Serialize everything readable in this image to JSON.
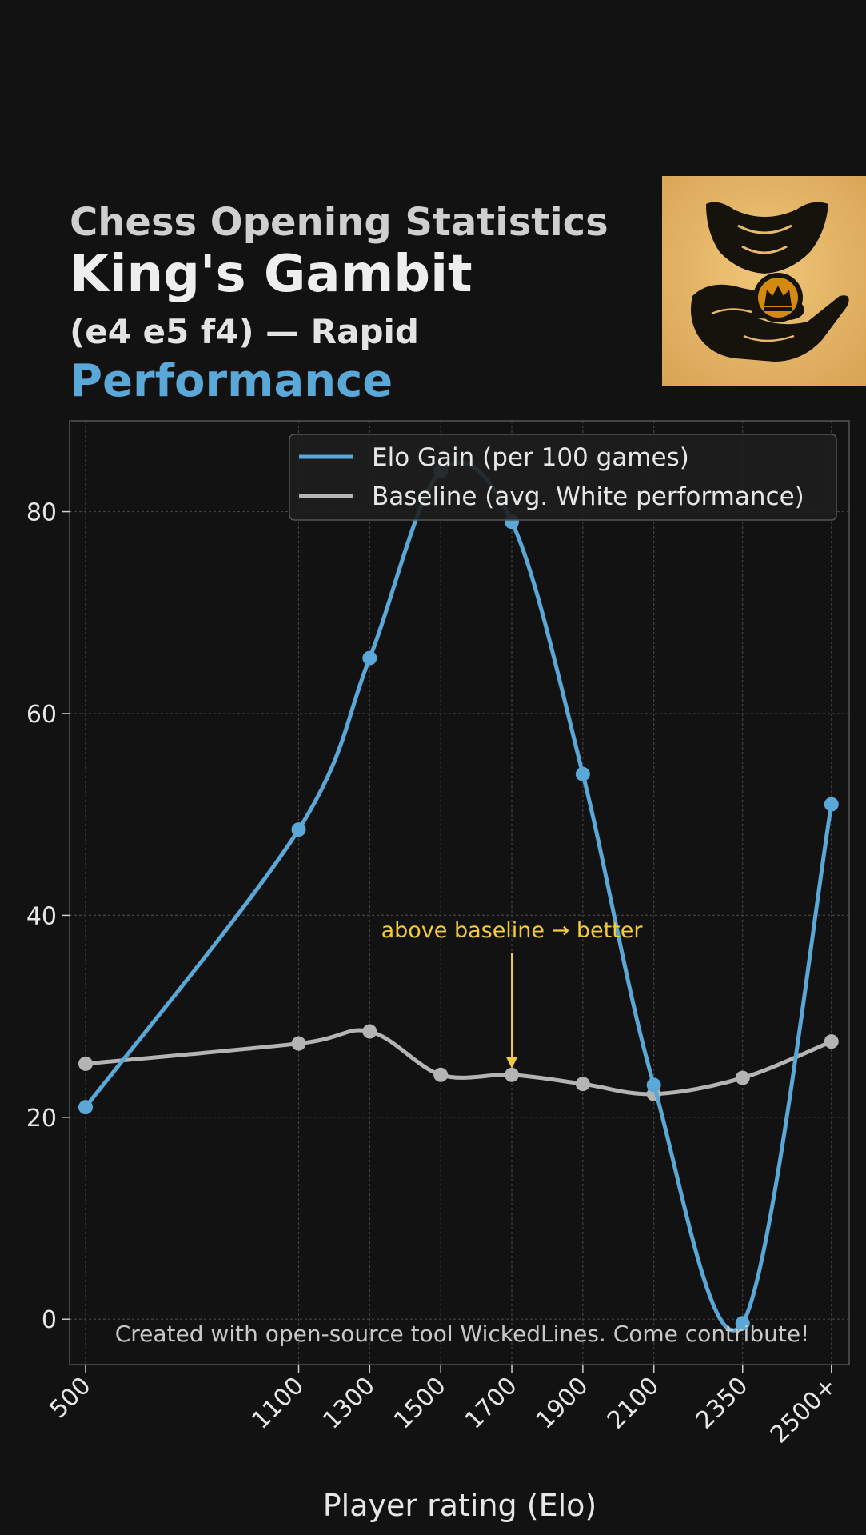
{
  "header": {
    "line1": "Chess Opening Statistics",
    "line2": "King's Gambit",
    "line3": "(e4 e5 f4) — Rapid",
    "line4": "Performance"
  },
  "logo": {
    "icon": "hand-holding-crown-coin-icon"
  },
  "colors": {
    "background": "#121212",
    "accent": "#5aa8d8",
    "baseline": "#b4b4b4",
    "annotation": "#f2cc3a"
  },
  "chart_data": {
    "type": "line",
    "categories": [
      "500",
      "1100",
      "1300",
      "1500",
      "1700",
      "1900",
      "2100",
      "2350",
      "2500+"
    ],
    "x_positions": [
      500,
      1100,
      1300,
      1500,
      1700,
      1900,
      2100,
      2350,
      2600
    ],
    "series": [
      {
        "name": "Elo Gain (per 100 games)",
        "values": [
          21.0,
          48.5,
          65.5,
          84.0,
          79.0,
          54.0,
          23.2,
          -0.4,
          51.0
        ]
      },
      {
        "name": "Baseline (avg. White performance)",
        "values": [
          25.3,
          27.3,
          28.5,
          24.2,
          24.2,
          23.3,
          22.3,
          23.9,
          27.5
        ]
      }
    ],
    "xlabel": "Player rating (Elo)",
    "ylabel": "",
    "ylim": [
      -4.5,
      89
    ],
    "yticks": [
      0,
      20,
      40,
      60,
      80
    ],
    "grid": true,
    "legend": "top-right",
    "annotation": {
      "text": "above baseline → better",
      "category": "1700",
      "y": 24.2
    },
    "footer": "Created with open-source tool WickedLines. Come contribute!"
  }
}
